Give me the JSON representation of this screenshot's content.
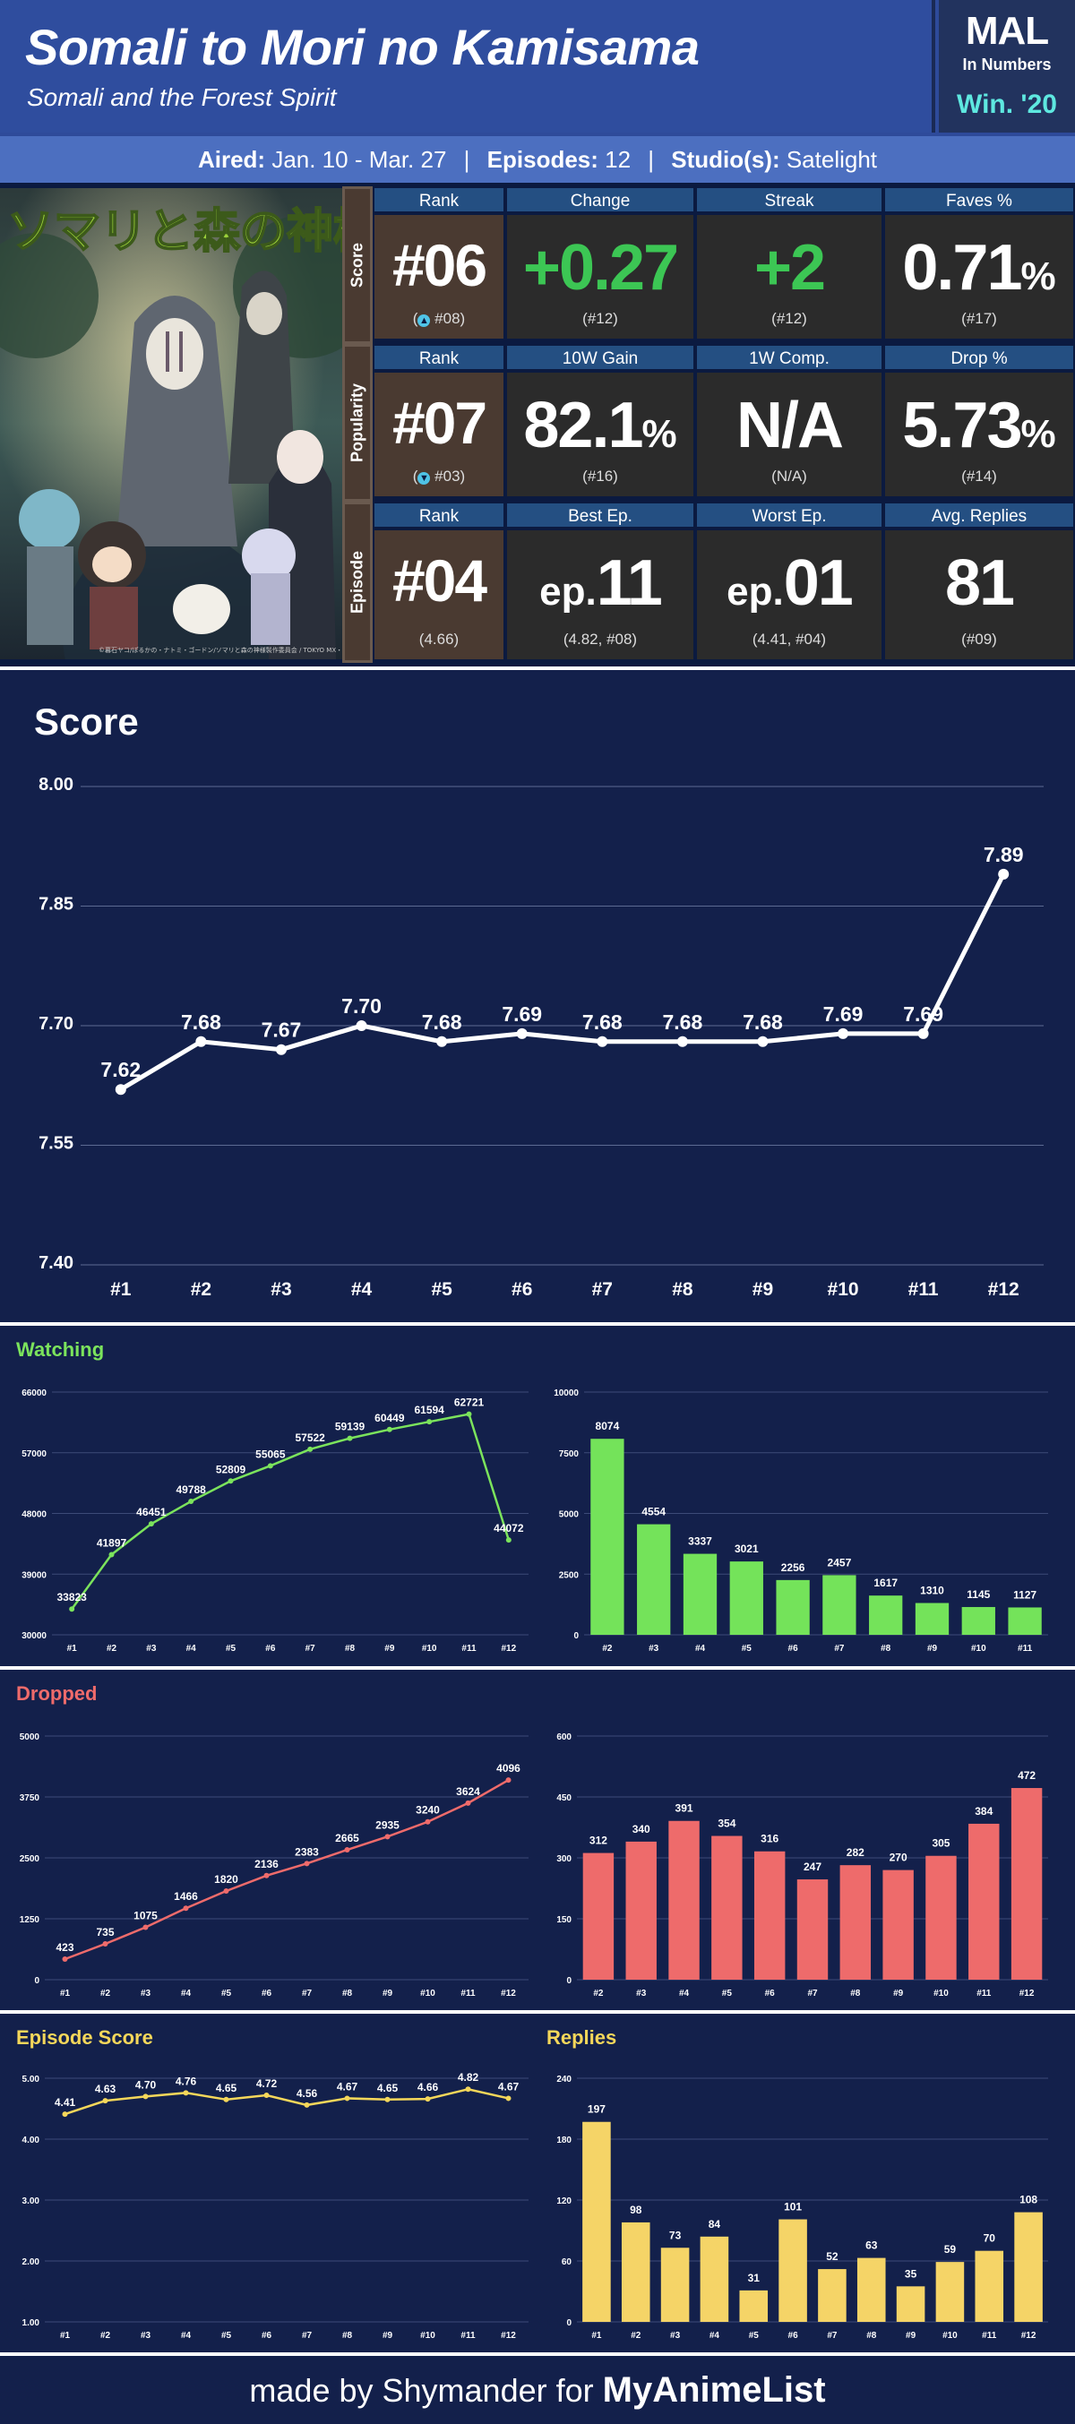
{
  "header": {
    "title": "Somali to Mori no Kamisama",
    "subtitle": "Somali and the Forest Spirit",
    "mal_logo": "MAL",
    "mal_in_numbers": "In Numbers",
    "season": "Win. '20"
  },
  "info": {
    "aired_label": "Aired:",
    "aired_value": "Jan. 10 - Mar. 27",
    "episodes_label": "Episodes:",
    "episodes_value": "12",
    "studio_label": "Studio(s):",
    "studio_value": "Satelight"
  },
  "poster": {
    "title_text": "ソマリと森の神様",
    "credit_text": "©暮石ヤコ/ぽるかの・ナトミ・ゴードン/ソマリと森の神様製作委員会 / TOKYO MX・ジェンコ・mixal"
  },
  "stats": {
    "score": {
      "label": "Score",
      "headers": [
        "Rank",
        "Change",
        "Streak",
        "Faves %"
      ],
      "rank": "#06",
      "rank_sub": "#08",
      "change": "+0.27",
      "change_sub": "(#12)",
      "streak": "+2",
      "streak_sub": "(#12)",
      "faves": "0.71",
      "faves_unit": "%",
      "faves_sub": "(#17)"
    },
    "popularity": {
      "label": "Popularity",
      "headers": [
        "Rank",
        "10W Gain",
        "1W Comp.",
        "Drop %"
      ],
      "rank": "#07",
      "rank_sub": "#03",
      "gain": "82.1",
      "gain_unit": "%",
      "gain_sub": "(#16)",
      "comp": "N/A",
      "comp_sub": "(N/A)",
      "drop": "5.73",
      "drop_unit": "%",
      "drop_sub": "(#14)"
    },
    "episode": {
      "label": "Episode",
      "headers": [
        "Rank",
        "Best Ep.",
        "Worst Ep.",
        "Avg. Replies"
      ],
      "rank": "#04",
      "rank_sub": "(4.66)",
      "best_prefix": "ep.",
      "best": "11",
      "best_sub": "(4.82, #08)",
      "worst_prefix": "ep.",
      "worst": "01",
      "worst_sub": "(4.41, #04)",
      "replies": "81",
      "replies_sub": "(#09)"
    }
  },
  "chart_data": [
    {
      "id": "score",
      "type": "line",
      "title": "Score",
      "x": [
        "#1",
        "#2",
        "#3",
        "#4",
        "#5",
        "#6",
        "#7",
        "#8",
        "#9",
        "#10",
        "#11",
        "#12"
      ],
      "values": [
        7.62,
        7.68,
        7.67,
        7.7,
        7.68,
        7.69,
        7.68,
        7.68,
        7.68,
        7.69,
        7.69,
        7.89
      ],
      "ylim": [
        7.4,
        8.0
      ],
      "yticks": [
        "7.40",
        "7.55",
        "7.70",
        "7.85",
        "8.00"
      ],
      "color": "#ffffff",
      "grid": true
    },
    {
      "id": "watching-line",
      "type": "line",
      "title": "Watching",
      "x": [
        "#1",
        "#2",
        "#3",
        "#4",
        "#5",
        "#6",
        "#7",
        "#8",
        "#9",
        "#10",
        "#11",
        "#12"
      ],
      "values": [
        33823,
        41897,
        46451,
        49788,
        52809,
        55065,
        57522,
        59139,
        60449,
        61594,
        62721,
        44072
      ],
      "ylim": [
        30000,
        66000
      ],
      "yticks": [
        "30000",
        "39000",
        "48000",
        "57000",
        "66000"
      ],
      "color": "#7be35c"
    },
    {
      "id": "watching-bar",
      "type": "bar",
      "categories": [
        "#2",
        "#3",
        "#4",
        "#5",
        "#6",
        "#7",
        "#8",
        "#9",
        "#10",
        "#11"
      ],
      "values": [
        8074,
        4554,
        3337,
        3021,
        2256,
        2457,
        1617,
        1310,
        1145,
        1127
      ],
      "ylim": [
        0,
        10000
      ],
      "yticks": [
        "0",
        "2500",
        "5000",
        "7500",
        "10000"
      ],
      "color": "#74e35a"
    },
    {
      "id": "dropped-line",
      "type": "line",
      "title": "Dropped",
      "x": [
        "#1",
        "#2",
        "#3",
        "#4",
        "#5",
        "#6",
        "#7",
        "#8",
        "#9",
        "#10",
        "#11",
        "#12"
      ],
      "values": [
        423,
        735,
        1075,
        1466,
        1820,
        2136,
        2383,
        2665,
        2935,
        3240,
        3624,
        4096
      ],
      "ylim": [
        0,
        5000
      ],
      "yticks": [
        "0",
        "1250",
        "2500",
        "3750",
        "5000"
      ],
      "color": "#ef6b6b"
    },
    {
      "id": "dropped-bar",
      "type": "bar",
      "categories": [
        "#2",
        "#3",
        "#4",
        "#5",
        "#6",
        "#7",
        "#8",
        "#9",
        "#10",
        "#11",
        "#12"
      ],
      "values": [
        312,
        340,
        391,
        354,
        316,
        247,
        282,
        270,
        305,
        384,
        472
      ],
      "ylim": [
        0,
        600
      ],
      "yticks": [
        "0",
        "150",
        "300",
        "450",
        "600"
      ],
      "color": "#ee6b6b"
    },
    {
      "id": "episode-score-line",
      "type": "line",
      "title": "Episode Score",
      "x": [
        "#1",
        "#2",
        "#3",
        "#4",
        "#5",
        "#6",
        "#7",
        "#8",
        "#9",
        "#10",
        "#11",
        "#12"
      ],
      "values": [
        4.41,
        4.63,
        4.7,
        4.76,
        4.65,
        4.72,
        4.56,
        4.67,
        4.65,
        4.66,
        4.82,
        4.67
      ],
      "ylim": [
        1.0,
        5.0
      ],
      "yticks": [
        "1.00",
        "2.00",
        "3.00",
        "4.00",
        "5.00"
      ],
      "color": "#f5d75a"
    },
    {
      "id": "replies-bar",
      "type": "bar",
      "title": "Replies",
      "categories": [
        "#1",
        "#2",
        "#3",
        "#4",
        "#5",
        "#6",
        "#7",
        "#8",
        "#9",
        "#10",
        "#11",
        "#12"
      ],
      "values": [
        197,
        98,
        73,
        84,
        31,
        101,
        52,
        63,
        35,
        59,
        70,
        108
      ],
      "ylim": [
        0,
        240
      ],
      "yticks": [
        "0",
        "60",
        "120",
        "180",
        "240"
      ],
      "color": "#f5d467"
    }
  ],
  "section_titles": {
    "watching": "Watching",
    "dropped": "Dropped",
    "episode_score": "Episode Score",
    "replies": "Replies"
  },
  "colors": {
    "watching": "#7be35c",
    "dropped": "#ef6b6b",
    "episode": "#f5d75a"
  },
  "footer": {
    "text": "made by Shymander for",
    "brand": "MyAnimeList"
  }
}
